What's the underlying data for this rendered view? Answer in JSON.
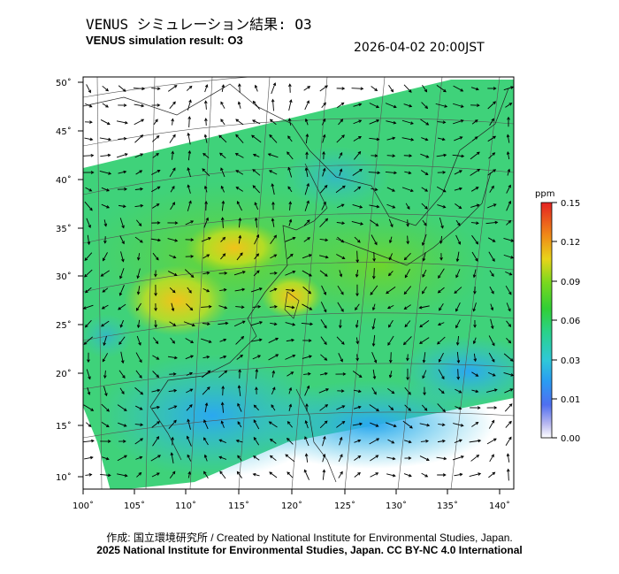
{
  "header": {
    "title_jp": "VENUS シミュレーション結果: O3",
    "title_en": "VENUS simulation result: O3",
    "timestamp": "2026-04-02 20:00JST"
  },
  "map": {
    "lon_ticks": [
      "100˚",
      "105˚",
      "110˚",
      "115˚",
      "120˚",
      "125˚",
      "130˚",
      "135˚",
      "140˚"
    ],
    "lat_ticks": [
      "50˚",
      "45˚",
      "40˚",
      "35˚",
      "30˚",
      "25˚",
      "20˚",
      "15˚",
      "10˚"
    ],
    "field_colors": {
      "low": "#35b3f0",
      "mid": "#2fd27a",
      "high": "#6fd62a",
      "peak": "#e3d21a"
    }
  },
  "colorbar": {
    "unit": "ppm",
    "tick_labels": [
      "0.15",
      "0.12",
      "0.09",
      "0.06",
      "0.03",
      "0.01",
      "0.00"
    ]
  },
  "footer": {
    "credit_line": "作成: 国立環境研究所 / Created by National Institute for Environmental Studies, Japan.",
    "license_line": "2025 National Institute for Environmental Studies, Japan. CC BY-NC 4.0 International"
  }
}
